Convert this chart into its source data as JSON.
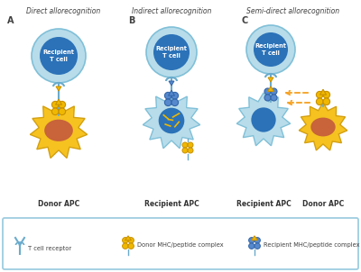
{
  "title_A": "Direct allorecognition",
  "title_B": "Indirect allorecognition",
  "title_C": "Semi-direct allorecognition",
  "label_A": "A",
  "label_B": "B",
  "label_C": "C",
  "label_donor_A": "Donor APC",
  "label_recipient_B": "Recipient APC",
  "label_recipient_C": "Recipient APC",
  "label_donor_C": "Donor APC",
  "legend_tcell": "T cell receptor",
  "legend_donor_mhc": "Donor MHC/peptide complex",
  "legend_recipient_mhc": "Recipient MHC/peptide complex",
  "color_tcell_outer": "#b8dcea",
  "color_tcell_inner": "#2b72b8",
  "color_donor_apc_star": "#f5c220",
  "color_donor_apc_inner": "#c8633a",
  "color_recipient_apc_star": "#b8dcea",
  "color_recipient_apc_inner": "#2b72b8",
  "color_donor_mhc": "#f0b800",
  "color_donor_mhc_border": "#c89000",
  "color_recipient_mhc": "#5588cc",
  "color_recipient_mhc_border": "#3366aa",
  "color_tcr": "#6aabcc",
  "color_arrow_orange": "#f5a020",
  "color_stem": "#6aabcc",
  "bg_color": "#ffffff",
  "legend_border": "#9ecde0",
  "text_color": "#404040",
  "text_color_dark": "#333333"
}
